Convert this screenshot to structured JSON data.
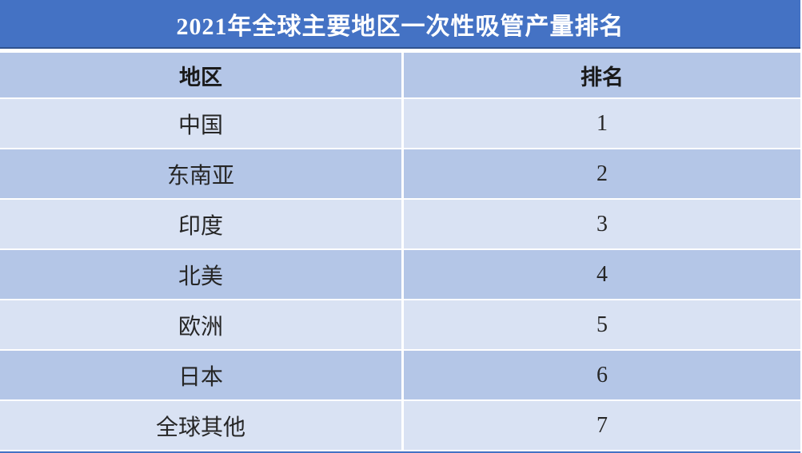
{
  "colors": {
    "title_bg": "#4472C4",
    "title_border": "#2F528F",
    "title_text": "#FFFFFF",
    "header_bg": "#B4C6E7",
    "row_light": "#D9E2F3",
    "row_dark": "#B4C6E7",
    "text_dark": "#262626",
    "bottom_bar": "#4472C4"
  },
  "table": {
    "title": "2021年全球主要地区一次性吸管产量排名",
    "columns": {
      "region": "地区",
      "rank": "排名"
    },
    "rows": [
      {
        "region": "中国",
        "rank": "1"
      },
      {
        "region": "东南亚",
        "rank": "2"
      },
      {
        "region": "印度",
        "rank": "3"
      },
      {
        "region": "北美",
        "rank": "4"
      },
      {
        "region": "欧洲",
        "rank": "5"
      },
      {
        "region": "日本",
        "rank": "6"
      },
      {
        "region": "全球其他",
        "rank": "7"
      }
    ]
  },
  "chart_data": {
    "type": "table",
    "title": "2021年全球主要地区一次性吸管产量排名",
    "columns": [
      "地区",
      "排名"
    ],
    "rows": [
      [
        "中国",
        1
      ],
      [
        "东南亚",
        2
      ],
      [
        "印度",
        3
      ],
      [
        "北美",
        4
      ],
      [
        "欧洲",
        5
      ],
      [
        "日本",
        6
      ],
      [
        "全球其他",
        7
      ]
    ],
    "layout_hints": {
      "banded_rows": true,
      "header_band_color": "#B4C6E7",
      "title_band_color": "#4472C4",
      "row_band_colors": [
        "#D9E2F3",
        "#B4C6E7"
      ]
    }
  }
}
